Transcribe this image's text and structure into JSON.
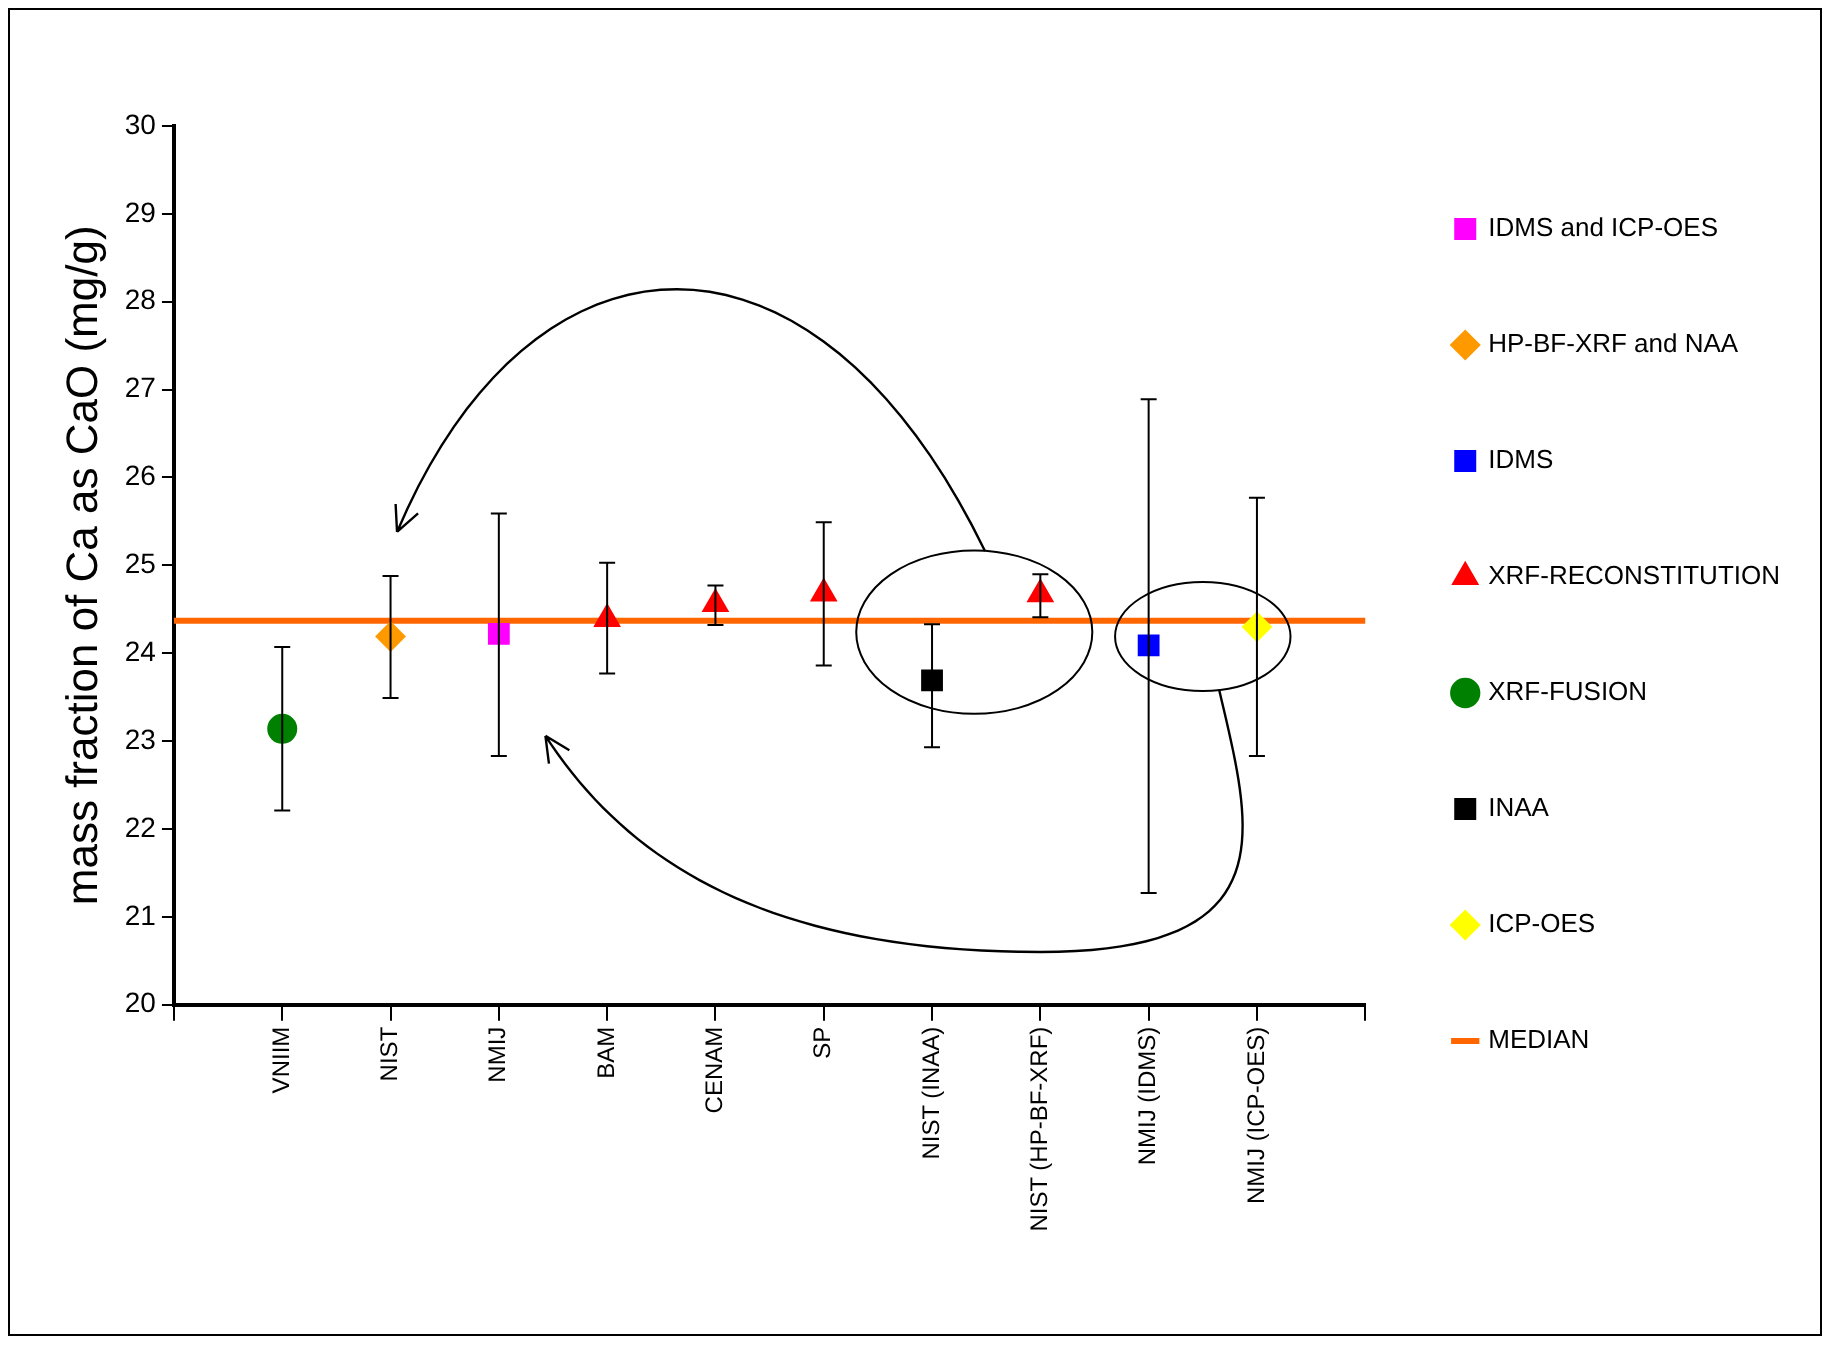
{
  "chart_data": {
    "type": "scatter",
    "ylabel": "mass fraction of Ca as CaO (mg/g)",
    "categories": [
      null,
      "VNIIM",
      "NIST",
      "NMIJ",
      "BAM",
      "CENAM",
      "SP",
      "NIST (INAA)",
      "NIST (HP-BF-XRF)",
      "NMIJ (IDMS)",
      "NMIJ (ICP-OES)",
      null
    ],
    "ylim": [
      20,
      30
    ],
    "yticks": [
      20,
      21,
      22,
      23,
      24,
      25,
      26,
      27,
      28,
      29,
      30
    ],
    "grid": false,
    "legend": "right",
    "series": [
      {
        "name": "IDMS and ICP-OES",
        "color": "#ff00ff",
        "marker": "square",
        "values": [
          null,
          null,
          null,
          24.22,
          null,
          null,
          null,
          null,
          null,
          null,
          null,
          null
        ],
        "errors": [
          null,
          null,
          null,
          [
            22.83,
            25.59
          ],
          null,
          null,
          null,
          null,
          null,
          null,
          null,
          null
        ]
      },
      {
        "name": "HP-BF-XRF and NAA",
        "color": "#ff9900",
        "marker": "diamond",
        "values": [
          null,
          null,
          24.19,
          null,
          null,
          null,
          null,
          null,
          null,
          null,
          null,
          null
        ],
        "errors": [
          null,
          null,
          [
            23.49,
            24.88
          ],
          null,
          null,
          null,
          null,
          null,
          null,
          null,
          null,
          null
        ]
      },
      {
        "name": "IDMS",
        "color": "#0000ff",
        "marker": "square",
        "values": [
          null,
          null,
          null,
          null,
          null,
          null,
          null,
          null,
          null,
          24.09,
          null,
          null
        ],
        "errors": [
          null,
          null,
          null,
          null,
          null,
          null,
          null,
          null,
          null,
          [
            21.27,
            26.89
          ],
          null,
          null
        ]
      },
      {
        "name": "XRF-RECONSTITUTION",
        "color": "#ff0000",
        "marker": "triangle",
        "values": [
          null,
          null,
          null,
          null,
          24.39,
          24.56,
          24.68,
          null,
          24.67,
          null,
          null,
          null
        ],
        "errors": [
          null,
          null,
          null,
          null,
          [
            23.77,
            25.03
          ],
          [
            24.32,
            24.77
          ],
          [
            23.86,
            25.49
          ],
          null,
          [
            24.41,
            24.9
          ],
          null,
          null,
          null
        ]
      },
      {
        "name": "XRF-FUSION",
        "color": "#008000",
        "marker": "circle",
        "values": [
          null,
          23.14,
          null,
          null,
          null,
          null,
          null,
          null,
          null,
          null,
          null,
          null
        ],
        "errors": [
          null,
          [
            22.21,
            24.07
          ],
          null,
          null,
          null,
          null,
          null,
          null,
          null,
          null,
          null,
          null
        ]
      },
      {
        "name": "INAA",
        "color": "#000000",
        "marker": "square",
        "values": [
          null,
          null,
          null,
          null,
          null,
          null,
          null,
          23.69,
          null,
          null,
          null,
          null
        ],
        "errors": [
          null,
          null,
          null,
          null,
          null,
          null,
          null,
          [
            22.93,
            24.33
          ],
          null,
          null,
          null,
          null
        ]
      },
      {
        "name": "ICP-OES",
        "color": "#ffff00",
        "marker": "diamond",
        "values": [
          null,
          null,
          null,
          null,
          null,
          null,
          null,
          null,
          null,
          null,
          24.3,
          null
        ],
        "errors": [
          null,
          null,
          null,
          null,
          null,
          null,
          null,
          null,
          null,
          null,
          [
            22.83,
            25.77
          ],
          null
        ]
      },
      {
        "name": "MEDIAN",
        "type": "line",
        "color": "#ff6600",
        "marker": "none",
        "values": [
          24.37,
          24.37,
          24.37,
          24.37,
          24.37,
          24.37,
          24.37,
          24.37,
          24.37,
          24.37,
          24.37,
          24.37
        ]
      }
    ]
  }
}
